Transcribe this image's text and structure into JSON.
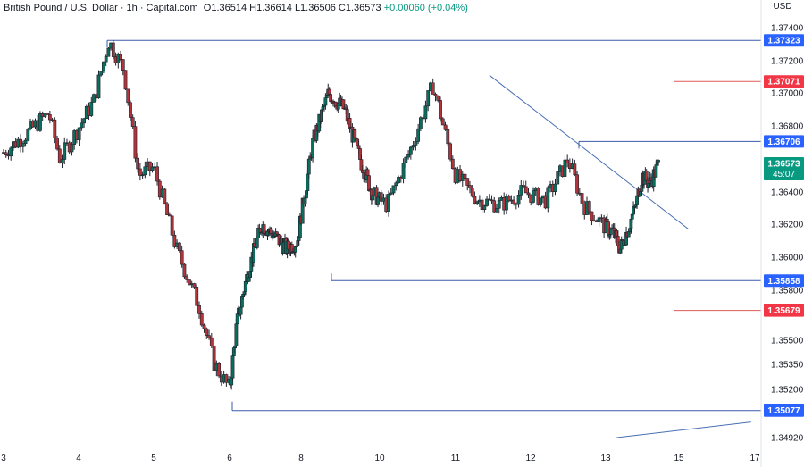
{
  "header": {
    "symbol": "British Pound / U.S. Dollar · 1h · Capital.com",
    "open": "O1.36514",
    "high": "H1.36614",
    "low": "L1.36506",
    "close": "C1.36573",
    "change": "+0.00060 (+0.04%)"
  },
  "currency": "USD",
  "chart_data": {
    "type": "candlestick",
    "y_ticks": [
      "1.37400",
      "1.37200",
      "1.37000",
      "1.36800",
      "1.36400",
      "1.36200",
      "1.36000",
      "1.35800",
      "1.35500",
      "1.35350",
      "1.35200",
      "1.34920"
    ],
    "x_ticks": [
      "3",
      "4",
      "5",
      "6",
      "8",
      "10",
      "11",
      "12",
      "13",
      "15",
      "17"
    ],
    "price_labels": [
      {
        "text": "1.37323",
        "color": "#2962ff"
      },
      {
        "text": "1.37071",
        "color": "#f23645"
      },
      {
        "text": "1.36706",
        "color": "#2962ff"
      },
      {
        "text": "1.36573",
        "color": "#089981",
        "countdown": "45:07"
      },
      {
        "text": "1.35858",
        "color": "#2962ff"
      },
      {
        "text": "1.35679",
        "color": "#f23645"
      },
      {
        "text": "1.35077",
        "color": "#2962ff"
      }
    ],
    "levels": [
      1.37323,
      1.37071,
      1.36706,
      1.35858,
      1.35679,
      1.35077
    ],
    "trendlines": [
      {
        "from": [
          11.45,
          1.3711
        ],
        "to": [
          15.25,
          1.3617
        ]
      },
      {
        "from": [
          13.3,
          1.3492
        ],
        "to": [
          16.9,
          1.3501
        ]
      }
    ],
    "close_path": [
      [
        3.0,
        1.3664
      ],
      [
        3.3,
        1.3675
      ],
      [
        3.6,
        1.3688
      ],
      [
        3.75,
        1.366
      ],
      [
        3.95,
        1.3675
      ],
      [
        4.2,
        1.3695
      ],
      [
        4.4,
        1.3732
      ],
      [
        4.6,
        1.3715
      ],
      [
        4.8,
        1.365
      ],
      [
        5.0,
        1.3655
      ],
      [
        5.3,
        1.3605
      ],
      [
        5.6,
        1.357
      ],
      [
        5.8,
        1.3535
      ],
      [
        6.0,
        1.352
      ],
      [
        6.2,
        1.356
      ],
      [
        6.5,
        1.359
      ],
      [
        6.9,
        1.362
      ],
      [
        7.3,
        1.3612
      ],
      [
        7.6,
        1.3605
      ],
      [
        7.9,
        1.361
      ],
      [
        8.3,
        1.367
      ],
      [
        8.7,
        1.37
      ],
      [
        9.1,
        1.369
      ],
      [
        9.5,
        1.366
      ],
      [
        9.8,
        1.364
      ],
      [
        10.1,
        1.3632
      ],
      [
        10.4,
        1.3665
      ],
      [
        10.7,
        1.3705
      ],
      [
        11.0,
        1.365
      ],
      [
        11.3,
        1.3635
      ],
      [
        11.6,
        1.3632
      ],
      [
        11.9,
        1.364
      ],
      [
        12.2,
        1.3635
      ],
      [
        12.5,
        1.366
      ],
      [
        12.7,
        1.3632
      ],
      [
        13.0,
        1.3618
      ],
      [
        13.2,
        1.3615
      ],
      [
        13.4,
        1.3605
      ],
      [
        13.6,
        1.3617
      ],
      [
        13.8,
        1.363
      ],
      [
        14.0,
        1.365
      ],
      [
        14.2,
        1.3645
      ],
      [
        14.45,
        1.3657
      ]
    ]
  }
}
